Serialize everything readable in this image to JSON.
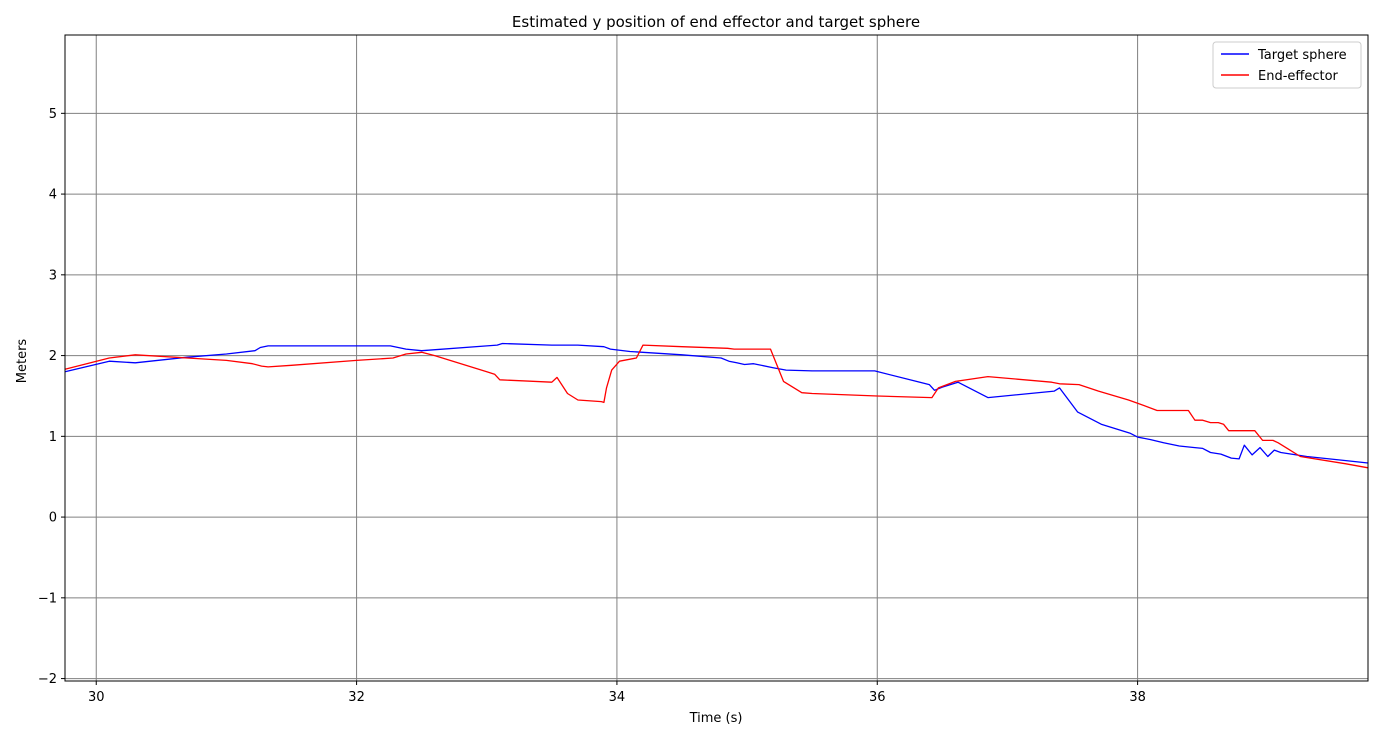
{
  "chart_data": {
    "type": "line",
    "title": "Estimated y position of end effector and target sphere",
    "xlabel": "Time (s)",
    "ylabel": "Meters",
    "xlim": [
      29.76,
      39.77
    ],
    "ylim": [
      -2.03,
      5.97
    ],
    "xticks": [
      30,
      32,
      34,
      36,
      38
    ],
    "yticks": [
      -2,
      -1,
      0,
      1,
      2,
      3,
      4,
      5
    ],
    "xtick_labels": [
      "30",
      "32",
      "34",
      "36",
      "38"
    ],
    "ytick_labels": [
      "−2",
      "−1",
      "0",
      "1",
      "2",
      "3",
      "4",
      "5"
    ],
    "grid": true,
    "legend_position": "top-right",
    "series": [
      {
        "name": "Target sphere",
        "color": "#0000ff",
        "x": [
          29.76,
          30.1,
          30.3,
          30.7,
          31.0,
          31.22,
          31.26,
          31.32,
          31.5,
          32.0,
          32.26,
          32.38,
          32.5,
          33.0,
          33.08,
          33.12,
          33.5,
          33.7,
          33.9,
          33.95,
          34.1,
          34.5,
          34.8,
          34.86,
          34.92,
          34.98,
          35.05,
          35.2,
          35.3,
          35.5,
          35.98,
          36.4,
          36.44,
          36.5,
          36.62,
          36.85,
          37.36,
          37.4,
          37.54,
          37.72,
          37.94,
          38.0,
          38.1,
          38.2,
          38.32,
          38.44,
          38.5,
          38.56,
          38.64,
          38.72,
          38.78,
          38.82,
          38.88,
          38.94,
          39.0,
          39.05,
          39.1,
          39.3,
          39.6,
          39.77
        ],
        "y": [
          1.8,
          1.93,
          1.91,
          1.98,
          2.02,
          2.06,
          2.1,
          2.12,
          2.12,
          2.12,
          2.12,
          2.08,
          2.06,
          2.12,
          2.13,
          2.15,
          2.13,
          2.13,
          2.11,
          2.08,
          2.05,
          2.01,
          1.97,
          1.93,
          1.91,
          1.89,
          1.9,
          1.85,
          1.82,
          1.81,
          1.81,
          1.64,
          1.57,
          1.61,
          1.67,
          1.48,
          1.56,
          1.6,
          1.3,
          1.15,
          1.04,
          0.99,
          0.96,
          0.92,
          0.88,
          0.86,
          0.85,
          0.8,
          0.78,
          0.73,
          0.72,
          0.89,
          0.77,
          0.86,
          0.75,
          0.83,
          0.8,
          0.75,
          0.7,
          0.67
        ]
      },
      {
        "name": "End-effector",
        "color": "#ff0000",
        "x": [
          29.76,
          30.1,
          30.3,
          30.7,
          31.0,
          31.2,
          31.27,
          31.32,
          31.5,
          32.0,
          32.28,
          32.38,
          32.5,
          32.6,
          33.0,
          33.06,
          33.1,
          33.5,
          33.54,
          33.62,
          33.7,
          33.88,
          33.9,
          33.92,
          33.96,
          34.02,
          34.15,
          34.2,
          34.5,
          34.85,
          34.9,
          35.0,
          35.18,
          35.28,
          35.42,
          35.5,
          36.0,
          36.42,
          36.47,
          36.6,
          36.85,
          37.34,
          37.4,
          37.55,
          37.7,
          37.93,
          38.0,
          38.15,
          38.3,
          38.39,
          38.44,
          38.5,
          38.56,
          38.62,
          38.66,
          38.7,
          38.8,
          38.9,
          38.96,
          39.04,
          39.08,
          39.15,
          39.25,
          39.6,
          39.77
        ],
        "y": [
          1.83,
          1.97,
          2.01,
          1.97,
          1.94,
          1.9,
          1.87,
          1.86,
          1.88,
          1.94,
          1.97,
          2.02,
          2.04,
          2.0,
          1.8,
          1.77,
          1.7,
          1.67,
          1.73,
          1.53,
          1.45,
          1.43,
          1.42,
          1.6,
          1.82,
          1.93,
          1.97,
          2.13,
          2.11,
          2.09,
          2.08,
          2.08,
          2.08,
          1.68,
          1.54,
          1.53,
          1.5,
          1.48,
          1.6,
          1.68,
          1.74,
          1.67,
          1.65,
          1.64,
          1.56,
          1.45,
          1.41,
          1.32,
          1.32,
          1.32,
          1.2,
          1.2,
          1.17,
          1.17,
          1.15,
          1.07,
          1.07,
          1.07,
          0.95,
          0.95,
          0.92,
          0.85,
          0.75,
          0.66,
          0.61
        ]
      }
    ]
  }
}
